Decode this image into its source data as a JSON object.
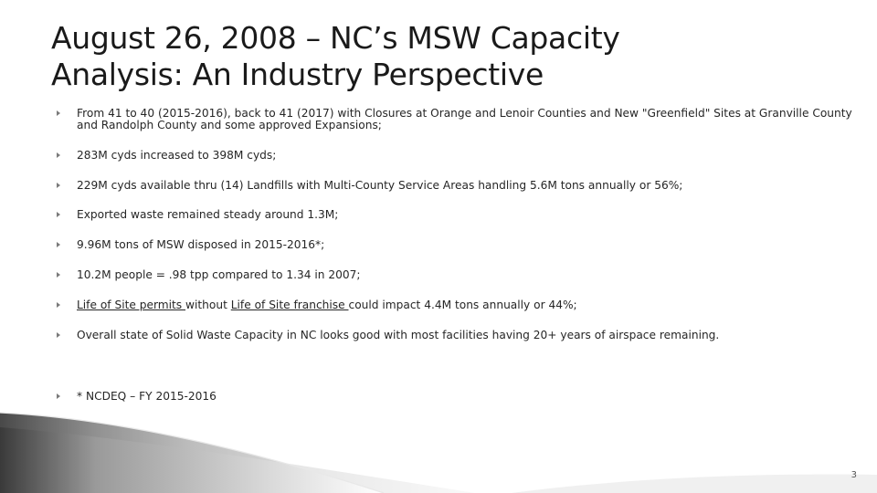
{
  "title": {
    "line1": "August 26, 2008 – NC’s MSW Capacity",
    "line2": "Analysis: An Industry Perspective"
  },
  "bullets": [
    {
      "text": "From 41 to 40 (2015-2016), back to 41 (2017) with Closures at Orange and Lenoir Counties and New \"Greenfield\" Sites at Granville County and Randolph County and some approved Expansions;"
    },
    {
      "text": "283M cyds increased to 398M cyds;"
    },
    {
      "text": "229M cyds available thru (14) Landfills with Multi-County Service Areas handling 5.6M tons annually or 56%;"
    },
    {
      "text": "Exported waste remained steady around 1.3M;"
    },
    {
      "text": "9.96M tons of MSW disposed in 2015-2016*;"
    },
    {
      "text": "10.2M people = .98 tpp compared to 1.34 in 2007;"
    },
    {
      "part1": "Life of Site permits ",
      "part2": "without ",
      "part3": "Life of Site franchise ",
      "part4": "could impact 4.4M tons annually or 44%;"
    },
    {
      "text": "Overall state of Solid Waste Capacity in NC looks good with most facilities having 20+ years of airspace remaining."
    },
    {
      "text": "* NCDEQ – FY 2015-2016"
    }
  ],
  "footer": {
    "page_number": "3"
  },
  "colors": {
    "title": "#1a1a1a",
    "body_text": "#262626",
    "bullet": "#7a7a7a",
    "decor_dark": "#3a3a3a",
    "decor_light": "#d9d9d9"
  }
}
